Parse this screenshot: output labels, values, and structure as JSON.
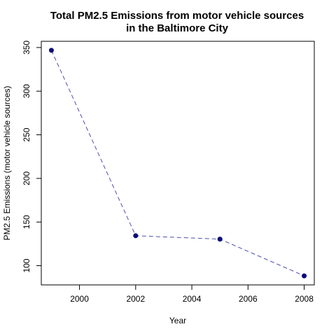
{
  "chart_data": {
    "type": "line",
    "title_lines": [
      "Total PM2.5 Emissions from motor vehicle sources",
      "in the Baltimore City"
    ],
    "xlabel": "Year",
    "ylabel": "PM2.5 Emissions (motor vehicle sources)",
    "x": [
      1999,
      2002,
      2005,
      2008
    ],
    "series": [
      {
        "values": [
          346.8,
          134.3,
          130.4,
          88.3
        ]
      }
    ],
    "xlim": [
      1999,
      2008
    ],
    "ylim": [
      88.3,
      346.8
    ],
    "xticks": [
      2000,
      2002,
      2004,
      2006,
      2008
    ],
    "yticks": [
      100,
      150,
      200,
      250,
      300,
      350
    ],
    "grid": false,
    "line_style": "dashed",
    "line_color": "#4f4fb0",
    "point_color": "#0c0c7a"
  }
}
